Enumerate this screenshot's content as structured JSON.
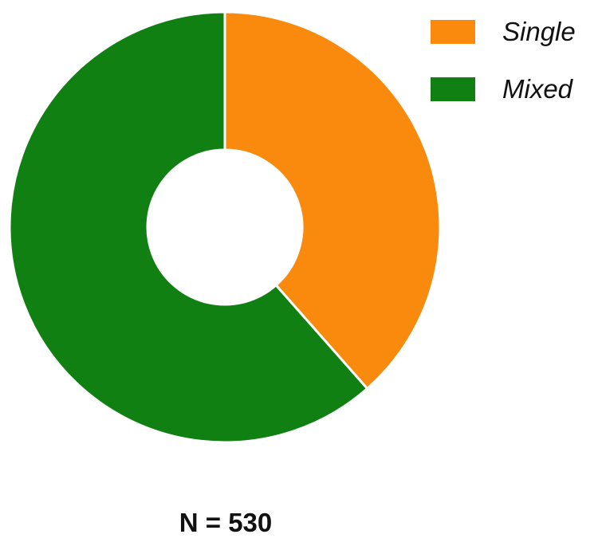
{
  "chart_data": {
    "type": "pie",
    "variant": "donut",
    "categories": [
      "Single",
      "Mixed"
    ],
    "values": [
      38.5,
      61.5
    ],
    "colors": [
      "#f98a0d",
      "#118012"
    ],
    "legend": {
      "placement": "top-right",
      "entries": [
        "Single",
        "Mixed"
      ]
    },
    "annotation": "N = 530",
    "start_angle": "12 o'clock",
    "direction": "clockwise",
    "grid": false
  }
}
